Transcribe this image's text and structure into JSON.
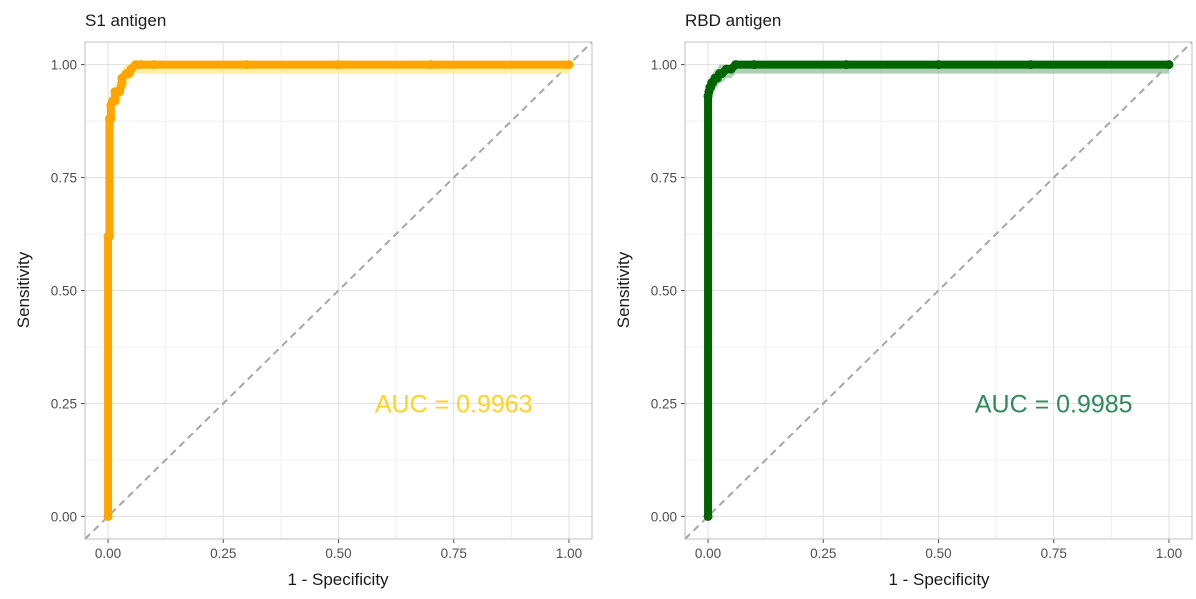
{
  "chart_data": [
    {
      "type": "line",
      "title": "S1 antigen",
      "xlabel": "1 - Specificity",
      "ylabel": "Sensitivity",
      "xlim": [
        -0.05,
        1.05
      ],
      "ylim": [
        -0.05,
        1.05
      ],
      "x_ticks": [
        "0.00",
        "0.25",
        "0.50",
        "0.75",
        "1.00"
      ],
      "y_ticks": [
        "0.00",
        "0.25",
        "0.50",
        "0.75",
        "1.00"
      ],
      "grid": true,
      "reference_line": "diagonal dashed",
      "annotation": "AUC = 0.9963",
      "line_color": "#FFA500",
      "band_color": "#FFE88A",
      "annotation_color": "#FFD21F",
      "series": [
        {
          "x": [
            0.0,
            0.0,
            0.003,
            0.003,
            0.006,
            0.006,
            0.01,
            0.015,
            0.015,
            0.025,
            0.03,
            0.03,
            0.04,
            0.045,
            0.05,
            0.06,
            0.07,
            0.1,
            0.3,
            0.5,
            0.7,
            1.0
          ],
          "y": [
            0.0,
            0.62,
            0.62,
            0.88,
            0.88,
            0.91,
            0.92,
            0.92,
            0.94,
            0.94,
            0.96,
            0.97,
            0.98,
            0.98,
            0.99,
            1.0,
            1.0,
            1.0,
            1.0,
            1.0,
            1.0,
            1.0
          ]
        }
      ],
      "band_lower": [
        0.0,
        0.6,
        0.6,
        0.85,
        0.85,
        0.88,
        0.89,
        0.89,
        0.91,
        0.91,
        0.93,
        0.94,
        0.95,
        0.96,
        0.97,
        0.98,
        0.98,
        0.98,
        0.98,
        0.98,
        0.98,
        0.98
      ],
      "band_upper": [
        0.0,
        0.64,
        0.64,
        0.9,
        0.9,
        0.93,
        0.94,
        0.94,
        0.96,
        0.96,
        0.98,
        0.99,
        1.0,
        1.0,
        1.0,
        1.0,
        1.0,
        1.0,
        1.0,
        1.0,
        1.0,
        1.0
      ]
    },
    {
      "type": "line",
      "title": "RBD antigen",
      "xlabel": "1 - Specificity",
      "ylabel": "Sensitivity",
      "xlim": [
        -0.05,
        1.05
      ],
      "ylim": [
        -0.05,
        1.05
      ],
      "x_ticks": [
        "0.00",
        "0.25",
        "0.50",
        "0.75",
        "1.00"
      ],
      "y_ticks": [
        "0.00",
        "0.25",
        "0.50",
        "0.75",
        "1.00"
      ],
      "grid": true,
      "reference_line": "diagonal dashed",
      "annotation": "AUC = 0.9985",
      "line_color": "#006400",
      "band_color": "#8FC29B",
      "annotation_color": "#2E8B57",
      "series": [
        {
          "x": [
            0.0,
            0.0,
            0.002,
            0.004,
            0.006,
            0.008,
            0.01,
            0.015,
            0.02,
            0.025,
            0.03,
            0.04,
            0.05,
            0.06,
            0.1,
            0.3,
            0.5,
            0.7,
            1.0
          ],
          "y": [
            0.0,
            0.93,
            0.94,
            0.95,
            0.95,
            0.96,
            0.96,
            0.97,
            0.97,
            0.98,
            0.98,
            0.99,
            0.99,
            1.0,
            1.0,
            1.0,
            1.0,
            1.0,
            1.0
          ]
        }
      ],
      "band_lower": [
        0.0,
        0.91,
        0.92,
        0.93,
        0.93,
        0.94,
        0.94,
        0.95,
        0.95,
        0.96,
        0.96,
        0.97,
        0.97,
        0.98,
        0.98,
        0.98,
        0.98,
        0.98,
        0.98
      ],
      "band_upper": [
        0.0,
        0.95,
        0.96,
        0.97,
        0.97,
        0.98,
        0.98,
        0.99,
        0.99,
        1.0,
        1.0,
        1.0,
        1.0,
        1.0,
        1.0,
        1.0,
        1.0,
        1.0,
        1.0
      ]
    }
  ]
}
